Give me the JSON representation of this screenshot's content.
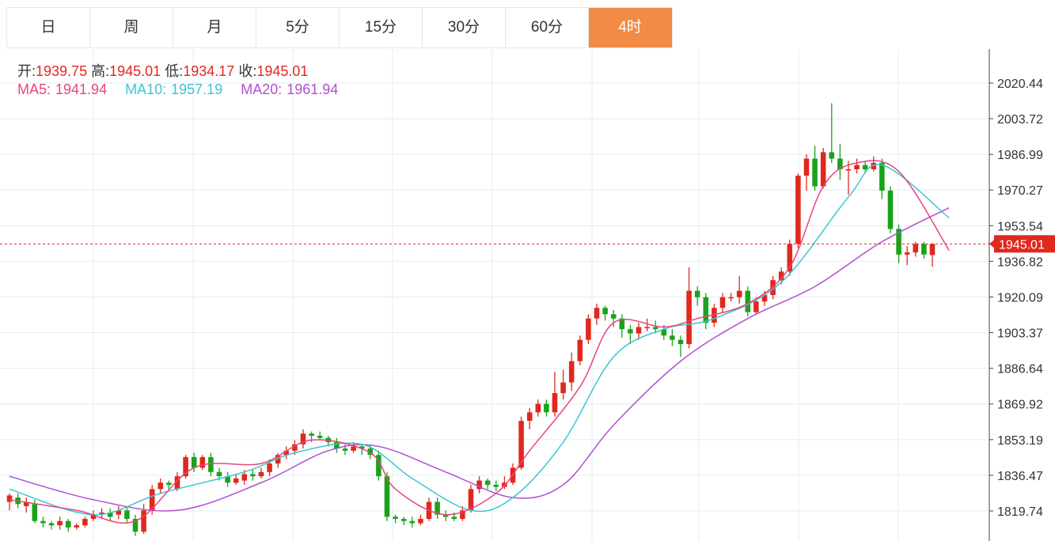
{
  "tabs": [
    {
      "label": "日",
      "active": false
    },
    {
      "label": "周",
      "active": false
    },
    {
      "label": "月",
      "active": false
    },
    {
      "label": "5分",
      "active": false
    },
    {
      "label": "15分",
      "active": false
    },
    {
      "label": "30分",
      "active": false
    },
    {
      "label": "60分",
      "active": false
    },
    {
      "label": "4时",
      "active": true
    }
  ],
  "ohlc": {
    "open_label": "开:",
    "open": "1939.75",
    "high_label": "高:",
    "high": "1945.01",
    "low_label": "低:",
    "low": "1934.17",
    "close_label": "收:",
    "close": "1945.01"
  },
  "ma": {
    "ma5_label": "MA5:",
    "ma5": "1941.94",
    "ma10_label": "MA10:",
    "ma10": "1957.19",
    "ma20_label": "MA20:",
    "ma20": "1961.94"
  },
  "colors": {
    "up": "#e0281e",
    "down": "#1aa31a",
    "ma5": "#e8457e",
    "ma10": "#3cc6d0",
    "ma20": "#b04fcf",
    "active_tab": "#f28b45",
    "grid": "#e3ecf4"
  },
  "price_tag": "1945.01",
  "chart_data": {
    "type": "candlestick",
    "y_ticks": [
      "2020.44",
      "2003.72",
      "1986.99",
      "1970.27",
      "1953.54",
      "1936.82",
      "1920.09",
      "1903.37",
      "1886.64",
      "1869.92",
      "1853.19",
      "1836.47",
      "1819.74"
    ],
    "ylim": [
      1810,
      2035
    ],
    "last_price": 1945.01,
    "candles": [
      [
        1824,
        1827,
        1828,
        1820
      ],
      [
        1826,
        1823,
        1828,
        1821
      ],
      [
        1822,
        1824,
        1826,
        1819
      ],
      [
        1823,
        1815,
        1825,
        1814
      ],
      [
        1815,
        1814,
        1817,
        1812
      ],
      [
        1814,
        1813,
        1815,
        1811
      ],
      [
        1813,
        1815,
        1817,
        1811
      ],
      [
        1815,
        1812,
        1816,
        1810
      ],
      [
        1812,
        1813,
        1814,
        1811
      ],
      [
        1813,
        1816,
        1817,
        1812
      ],
      [
        1816,
        1818,
        1820,
        1815
      ],
      [
        1818,
        1819,
        1821,
        1816
      ],
      [
        1819,
        1817,
        1821,
        1815
      ],
      [
        1818,
        1820,
        1822,
        1816
      ],
      [
        1820,
        1816,
        1822,
        1814
      ],
      [
        1816,
        1810,
        1818,
        1808
      ],
      [
        1810,
        1820,
        1823,
        1809
      ],
      [
        1820,
        1830,
        1832,
        1818
      ],
      [
        1830,
        1833,
        1835,
        1828
      ],
      [
        1833,
        1832,
        1834,
        1830
      ],
      [
        1830,
        1836,
        1838,
        1829
      ],
      [
        1836,
        1845,
        1846,
        1835
      ],
      [
        1845,
        1840,
        1847,
        1838
      ],
      [
        1840,
        1845,
        1846,
        1839
      ],
      [
        1845,
        1838,
        1847,
        1836
      ],
      [
        1838,
        1836,
        1840,
        1834
      ],
      [
        1836,
        1833,
        1838,
        1831
      ],
      [
        1833,
        1835,
        1837,
        1832
      ],
      [
        1834,
        1837,
        1839,
        1832
      ],
      [
        1837,
        1836,
        1839,
        1834
      ],
      [
        1836,
        1838,
        1840,
        1835
      ],
      [
        1838,
        1842,
        1844,
        1836
      ],
      [
        1842,
        1846,
        1847,
        1840
      ],
      [
        1846,
        1848,
        1850,
        1844
      ],
      [
        1848,
        1851,
        1853,
        1846
      ],
      [
        1851,
        1856,
        1858,
        1849
      ],
      [
        1856,
        1855,
        1857,
        1852
      ],
      [
        1855,
        1854,
        1857,
        1853
      ],
      [
        1854,
        1852,
        1855,
        1850
      ],
      [
        1852,
        1849,
        1854,
        1847
      ],
      [
        1849,
        1848,
        1851,
        1846
      ],
      [
        1848,
        1850,
        1852,
        1847
      ],
      [
        1850,
        1849,
        1851,
        1846
      ],
      [
        1849,
        1846,
        1851,
        1844
      ],
      [
        1846,
        1836,
        1848,
        1834
      ],
      [
        1836,
        1817,
        1838,
        1815
      ],
      [
        1817,
        1816,
        1818,
        1814
      ],
      [
        1816,
        1815,
        1817,
        1813
      ],
      [
        1815,
        1814,
        1817,
        1812
      ],
      [
        1814,
        1816,
        1818,
        1813
      ],
      [
        1816,
        1824,
        1826,
        1815
      ],
      [
        1824,
        1818,
        1826,
        1816
      ],
      [
        1818,
        1817,
        1820,
        1815
      ],
      [
        1817,
        1816,
        1819,
        1815
      ],
      [
        1816,
        1820,
        1822,
        1815
      ],
      [
        1820,
        1830,
        1832,
        1819
      ],
      [
        1830,
        1834,
        1836,
        1828
      ],
      [
        1834,
        1832,
        1835,
        1830
      ],
      [
        1832,
        1831,
        1834,
        1829
      ],
      [
        1831,
        1833,
        1836,
        1830
      ],
      [
        1833,
        1840,
        1842,
        1832
      ],
      [
        1840,
        1862,
        1864,
        1839
      ],
      [
        1862,
        1866,
        1868,
        1858
      ],
      [
        1866,
        1870,
        1872,
        1864
      ],
      [
        1870,
        1866,
        1872,
        1864
      ],
      [
        1866,
        1875,
        1885,
        1864
      ],
      [
        1875,
        1880,
        1886,
        1872
      ],
      [
        1880,
        1890,
        1894,
        1876
      ],
      [
        1890,
        1900,
        1902,
        1888
      ],
      [
        1900,
        1910,
        1912,
        1898
      ],
      [
        1910,
        1915,
        1917,
        1907
      ],
      [
        1915,
        1912,
        1916,
        1909
      ],
      [
        1912,
        1910,
        1914,
        1906
      ],
      [
        1910,
        1905,
        1912,
        1901
      ],
      [
        1905,
        1903,
        1907,
        1898
      ],
      [
        1903,
        1906,
        1908,
        1900
      ],
      [
        1906,
        1906,
        1910,
        1904
      ],
      [
        1906,
        1905,
        1909,
        1903
      ],
      [
        1905,
        1902,
        1907,
        1900
      ],
      [
        1902,
        1900,
        1905,
        1897
      ],
      [
        1900,
        1898,
        1902,
        1892
      ],
      [
        1898,
        1923,
        1934,
        1896
      ],
      [
        1923,
        1920,
        1925,
        1916
      ],
      [
        1920,
        1908,
        1922,
        1905
      ],
      [
        1908,
        1915,
        1917,
        1906
      ],
      [
        1915,
        1920,
        1922,
        1913
      ],
      [
        1920,
        1920,
        1922,
        1918
      ],
      [
        1920,
        1923,
        1930,
        1917
      ],
      [
        1923,
        1913,
        1925,
        1911
      ],
      [
        1913,
        1918,
        1920,
        1912
      ],
      [
        1918,
        1921,
        1923,
        1916
      ],
      [
        1921,
        1928,
        1930,
        1919
      ],
      [
        1928,
        1932,
        1934,
        1926
      ],
      [
        1932,
        1945,
        1947,
        1930
      ],
      [
        1945,
        1977,
        1978,
        1943
      ],
      [
        1977,
        1985,
        1987,
        1970
      ],
      [
        1985,
        1972,
        1991,
        1970
      ],
      [
        1972,
        1988,
        1990,
        1971
      ],
      [
        1988,
        1985,
        2011,
        1983
      ],
      [
        1985,
        1980,
        1992,
        1975
      ],
      [
        1980,
        1980,
        1984,
        1968
      ],
      [
        1980,
        1982,
        1985,
        1978
      ],
      [
        1982,
        1980,
        1984,
        1978
      ],
      [
        1980,
        1983,
        1986,
        1979
      ],
      [
        1983,
        1970,
        1985,
        1966
      ],
      [
        1970,
        1952,
        1972,
        1950
      ],
      [
        1952,
        1940,
        1954,
        1936
      ],
      [
        1940,
        1941,
        1944,
        1935
      ],
      [
        1941,
        1945,
        1946,
        1939
      ],
      [
        1945,
        1940,
        1946,
        1938
      ],
      [
        1939.75,
        1945.01,
        1945.01,
        1934.17
      ]
    ],
    "ma5": [
      [
        0,
        1825
      ],
      [
        8,
        1820
      ],
      [
        15,
        1815
      ],
      [
        22,
        1840
      ],
      [
        30,
        1842
      ],
      [
        36,
        1853
      ],
      [
        43,
        1847
      ],
      [
        46,
        1830
      ],
      [
        52,
        1818
      ],
      [
        58,
        1828
      ],
      [
        62,
        1848
      ],
      [
        68,
        1878
      ],
      [
        72,
        1908
      ],
      [
        78,
        1906
      ],
      [
        82,
        1910
      ],
      [
        88,
        1917
      ],
      [
        93,
        1934
      ],
      [
        97,
        1972
      ],
      [
        101,
        1983
      ],
      [
        106,
        1979
      ],
      [
        112,
        1941.94
      ]
    ],
    "ma10": [
      [
        0,
        1830
      ],
      [
        10,
        1818
      ],
      [
        18,
        1828
      ],
      [
        28,
        1838
      ],
      [
        34,
        1847
      ],
      [
        42,
        1851
      ],
      [
        48,
        1835
      ],
      [
        55,
        1820
      ],
      [
        60,
        1826
      ],
      [
        66,
        1852
      ],
      [
        72,
        1892
      ],
      [
        78,
        1905
      ],
      [
        84,
        1910
      ],
      [
        92,
        1927
      ],
      [
        100,
        1967
      ],
      [
        104,
        1982
      ],
      [
        112,
        1957.19
      ]
    ],
    "ma20": [
      [
        0,
        1836
      ],
      [
        10,
        1825
      ],
      [
        20,
        1820
      ],
      [
        30,
        1833
      ],
      [
        38,
        1848
      ],
      [
        44,
        1850
      ],
      [
        52,
        1838
      ],
      [
        60,
        1826
      ],
      [
        66,
        1832
      ],
      [
        72,
        1860
      ],
      [
        80,
        1890
      ],
      [
        88,
        1910
      ],
      [
        96,
        1925
      ],
      [
        104,
        1946
      ],
      [
        112,
        1961.94
      ]
    ]
  }
}
